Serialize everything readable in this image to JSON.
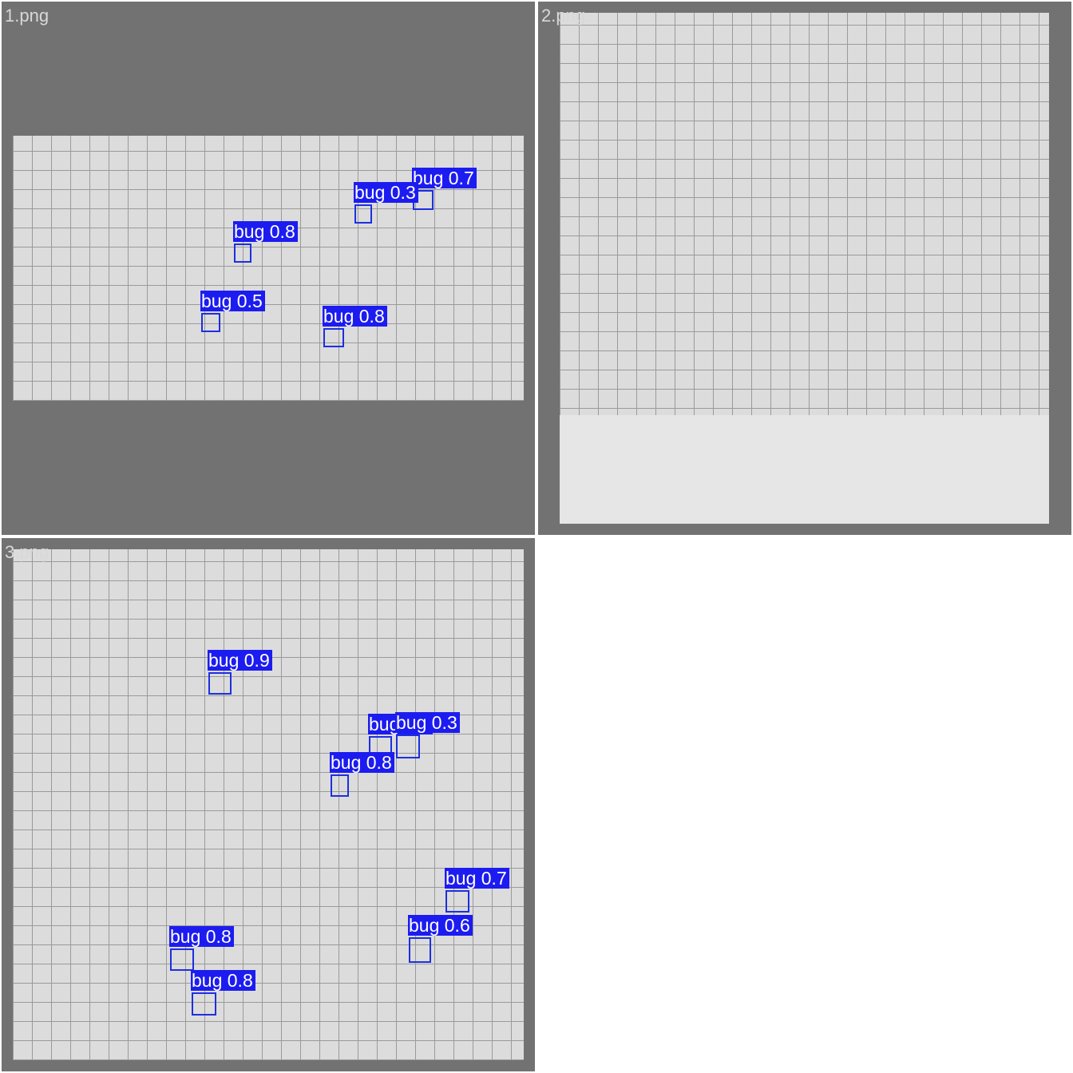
{
  "tiles": [
    {
      "filename": "1.png",
      "detections": [
        "bug 0.7",
        "bug 0.3",
        "bug 0.8",
        "bug 0.5",
        "bug 0.8"
      ]
    },
    {
      "filename": "2.png",
      "detections": []
    },
    {
      "filename": "3.png",
      "detections": [
        "bug 0.9",
        "bug 0.8",
        "bug 0.3",
        "bug 0.8",
        "bug 0.7",
        "bug 0.6",
        "bug 0.8",
        "bug 0.8"
      ]
    }
  ]
}
